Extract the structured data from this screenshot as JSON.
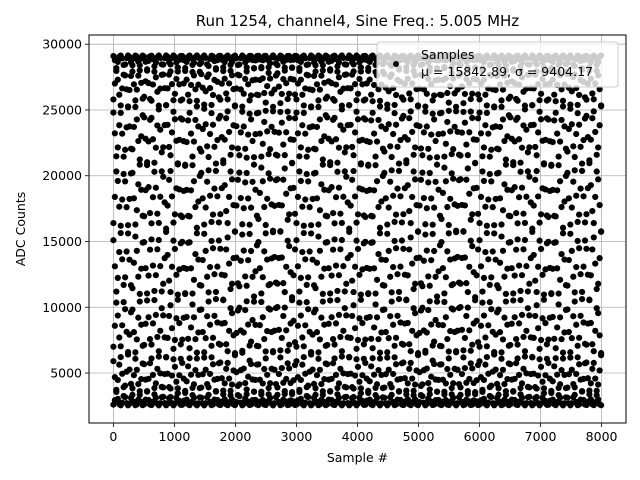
{
  "chart_data": {
    "type": "scatter",
    "title": "Run 1254, channel4, Sine Freq.: 5.005 MHz",
    "xlabel": "Sample #",
    "ylabel": "ADC Counts",
    "xlim": [
      -400,
      8400
    ],
    "ylim": [
      1200,
      30700
    ],
    "xticks": [
      0,
      1000,
      2000,
      3000,
      4000,
      5000,
      6000,
      7000,
      8000
    ],
    "yticks": [
      5000,
      10000,
      15000,
      20000,
      25000,
      30000
    ],
    "grid": true,
    "legend_position": "top-right",
    "marker_color": "#000000",
    "series": [
      {
        "name": "Samples",
        "legend_label": "μ = 15842.89, σ = 9404.17",
        "mean": 15842.89,
        "amplitude": 13300,
        "sample_count": 8000,
        "visible_period_samples": 1000,
        "initial_values": [
          29100,
          25800,
          24800,
          16400,
          15100,
          7000,
          5900,
          2600
        ]
      }
    ]
  }
}
